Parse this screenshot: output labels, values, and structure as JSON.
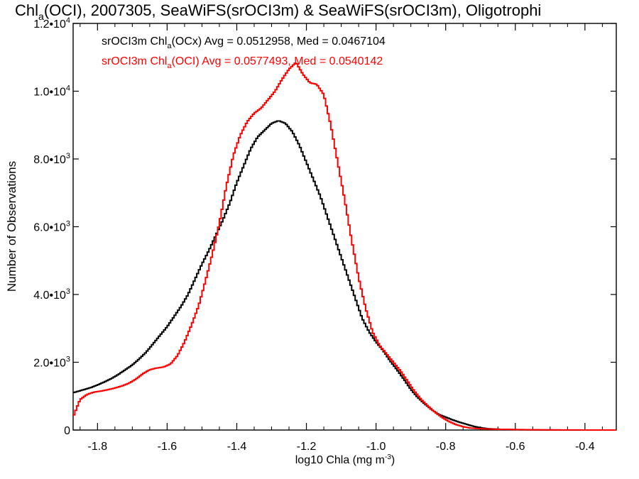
{
  "chart_data": {
    "type": "line",
    "title": {
      "pre": "Chl",
      "sub": "a",
      "post": "(OCI), 2007305, SeaWiFS(srOCI3m) & SeaWiFS(srOCI3m), Oligotrophi"
    },
    "xlabel": {
      "pre": "log10 Chla (mg m",
      "sup": "-3",
      "post": ")"
    },
    "ylabel": "Number of Observations",
    "xlim": [
      -1.87,
      -0.31
    ],
    "ylim": [
      0,
      12000
    ],
    "x_ticks": [
      {
        "value": -1.8,
        "label": "-1.8"
      },
      {
        "value": -1.6,
        "label": "-1.6"
      },
      {
        "value": -1.4,
        "label": "-1.4"
      },
      {
        "value": -1.2,
        "label": "-1.2"
      },
      {
        "value": -1.0,
        "label": "-1.0"
      },
      {
        "value": -0.8,
        "label": "-0.8"
      },
      {
        "value": -0.6,
        "label": "-0.6"
      },
      {
        "value": -0.4,
        "label": "-0.4"
      }
    ],
    "y_ticks": [
      {
        "value": 0,
        "mant": "0",
        "exp": ""
      },
      {
        "value": 2000,
        "mant": "2.0•10",
        "exp": "3"
      },
      {
        "value": 4000,
        "mant": "4.0•10",
        "exp": "3"
      },
      {
        "value": 6000,
        "mant": "6.0•10",
        "exp": "3"
      },
      {
        "value": 8000,
        "mant": "8.0•10",
        "exp": "3"
      },
      {
        "value": 10000,
        "mant": "1.0•10",
        "exp": "4"
      },
      {
        "value": 12000,
        "mant": "1.2•10",
        "exp": "4"
      }
    ],
    "legend_position": "top-left",
    "series": [
      {
        "label_pre": "srOCI3m Chl",
        "label_sub": "a",
        "label_post": "(OCx) Avg = 0.0512958, Med = 0.0467104",
        "color": "#000000",
        "points": [
          [
            -1.87,
            1100
          ],
          [
            -1.85,
            1160
          ],
          [
            -1.82,
            1250
          ],
          [
            -1.8,
            1330
          ],
          [
            -1.78,
            1420
          ],
          [
            -1.76,
            1520
          ],
          [
            -1.74,
            1640
          ],
          [
            -1.72,
            1780
          ],
          [
            -1.7,
            1920
          ],
          [
            -1.68,
            2100
          ],
          [
            -1.66,
            2300
          ],
          [
            -1.64,
            2550
          ],
          [
            -1.62,
            2800
          ],
          [
            -1.6,
            3050
          ],
          [
            -1.58,
            3350
          ],
          [
            -1.56,
            3650
          ],
          [
            -1.54,
            4000
          ],
          [
            -1.52,
            4450
          ],
          [
            -1.5,
            4900
          ],
          [
            -1.48,
            5300
          ],
          [
            -1.46,
            5750
          ],
          [
            -1.44,
            6200
          ],
          [
            -1.42,
            6700
          ],
          [
            -1.4,
            7300
          ],
          [
            -1.38,
            7800
          ],
          [
            -1.36,
            8300
          ],
          [
            -1.34,
            8650
          ],
          [
            -1.32,
            8850
          ],
          [
            -1.3,
            9050
          ],
          [
            -1.28,
            9130
          ],
          [
            -1.26,
            9050
          ],
          [
            -1.24,
            8800
          ],
          [
            -1.22,
            8400
          ],
          [
            -1.2,
            7900
          ],
          [
            -1.18,
            7400
          ],
          [
            -1.16,
            6900
          ],
          [
            -1.14,
            6300
          ],
          [
            -1.12,
            5700
          ],
          [
            -1.1,
            5100
          ],
          [
            -1.08,
            4500
          ],
          [
            -1.06,
            3900
          ],
          [
            -1.04,
            3300
          ],
          [
            -1.02,
            2900
          ],
          [
            -1.0,
            2600
          ],
          [
            -0.98,
            2350
          ],
          [
            -0.96,
            2050
          ],
          [
            -0.94,
            1780
          ],
          [
            -0.92,
            1500
          ],
          [
            -0.9,
            1200
          ],
          [
            -0.88,
            960
          ],
          [
            -0.86,
            770
          ],
          [
            -0.84,
            600
          ],
          [
            -0.82,
            460
          ],
          [
            -0.8,
            380
          ],
          [
            -0.78,
            300
          ],
          [
            -0.76,
            230
          ],
          [
            -0.74,
            170
          ],
          [
            -0.72,
            110
          ],
          [
            -0.7,
            70
          ],
          [
            -0.68,
            40
          ],
          [
            -0.64,
            20
          ],
          [
            -0.6,
            10
          ],
          [
            -0.55,
            5
          ],
          [
            -0.5,
            2
          ],
          [
            -0.4,
            0
          ],
          [
            -0.31,
            0
          ]
        ]
      },
      {
        "label_pre": "srOCI3m Chl",
        "label_sub": "a",
        "label_post": "(OCI) Avg = 0.0577493, Med = 0.0540142",
        "color": "#ff0000",
        "points": [
          [
            -1.87,
            380
          ],
          [
            -1.86,
            650
          ],
          [
            -1.85,
            900
          ],
          [
            -1.83,
            1050
          ],
          [
            -1.81,
            1120
          ],
          [
            -1.79,
            1150
          ],
          [
            -1.77,
            1190
          ],
          [
            -1.75,
            1240
          ],
          [
            -1.73,
            1300
          ],
          [
            -1.71,
            1380
          ],
          [
            -1.69,
            1500
          ],
          [
            -1.67,
            1660
          ],
          [
            -1.65,
            1780
          ],
          [
            -1.63,
            1830
          ],
          [
            -1.61,
            1860
          ],
          [
            -1.59,
            1950
          ],
          [
            -1.57,
            2200
          ],
          [
            -1.55,
            2600
          ],
          [
            -1.53,
            3100
          ],
          [
            -1.51,
            3650
          ],
          [
            -1.49,
            4400
          ],
          [
            -1.47,
            5200
          ],
          [
            -1.45,
            6100
          ],
          [
            -1.43,
            7200
          ],
          [
            -1.41,
            8100
          ],
          [
            -1.39,
            8700
          ],
          [
            -1.37,
            9100
          ],
          [
            -1.35,
            9350
          ],
          [
            -1.33,
            9500
          ],
          [
            -1.31,
            9750
          ],
          [
            -1.29,
            10000
          ],
          [
            -1.27,
            10350
          ],
          [
            -1.25,
            10650
          ],
          [
            -1.23,
            10850
          ],
          [
            -1.21,
            10500
          ],
          [
            -1.19,
            10250
          ],
          [
            -1.17,
            10200
          ],
          [
            -1.15,
            9900
          ],
          [
            -1.13,
            9000
          ],
          [
            -1.11,
            7900
          ],
          [
            -1.09,
            6800
          ],
          [
            -1.07,
            5600
          ],
          [
            -1.05,
            4500
          ],
          [
            -1.03,
            3600
          ],
          [
            -1.01,
            2900
          ],
          [
            -0.99,
            2500
          ],
          [
            -0.97,
            2250
          ],
          [
            -0.95,
            2000
          ],
          [
            -0.93,
            1750
          ],
          [
            -0.91,
            1450
          ],
          [
            -0.89,
            1150
          ],
          [
            -0.87,
            900
          ],
          [
            -0.85,
            700
          ],
          [
            -0.83,
            520
          ],
          [
            -0.81,
            370
          ],
          [
            -0.79,
            250
          ],
          [
            -0.77,
            160
          ],
          [
            -0.75,
            100
          ],
          [
            -0.73,
            60
          ],
          [
            -0.7,
            40
          ],
          [
            -0.66,
            25
          ],
          [
            -0.6,
            15
          ],
          [
            -0.55,
            8
          ],
          [
            -0.5,
            4
          ],
          [
            -0.4,
            1
          ],
          [
            -0.31,
            0
          ]
        ]
      }
    ]
  }
}
